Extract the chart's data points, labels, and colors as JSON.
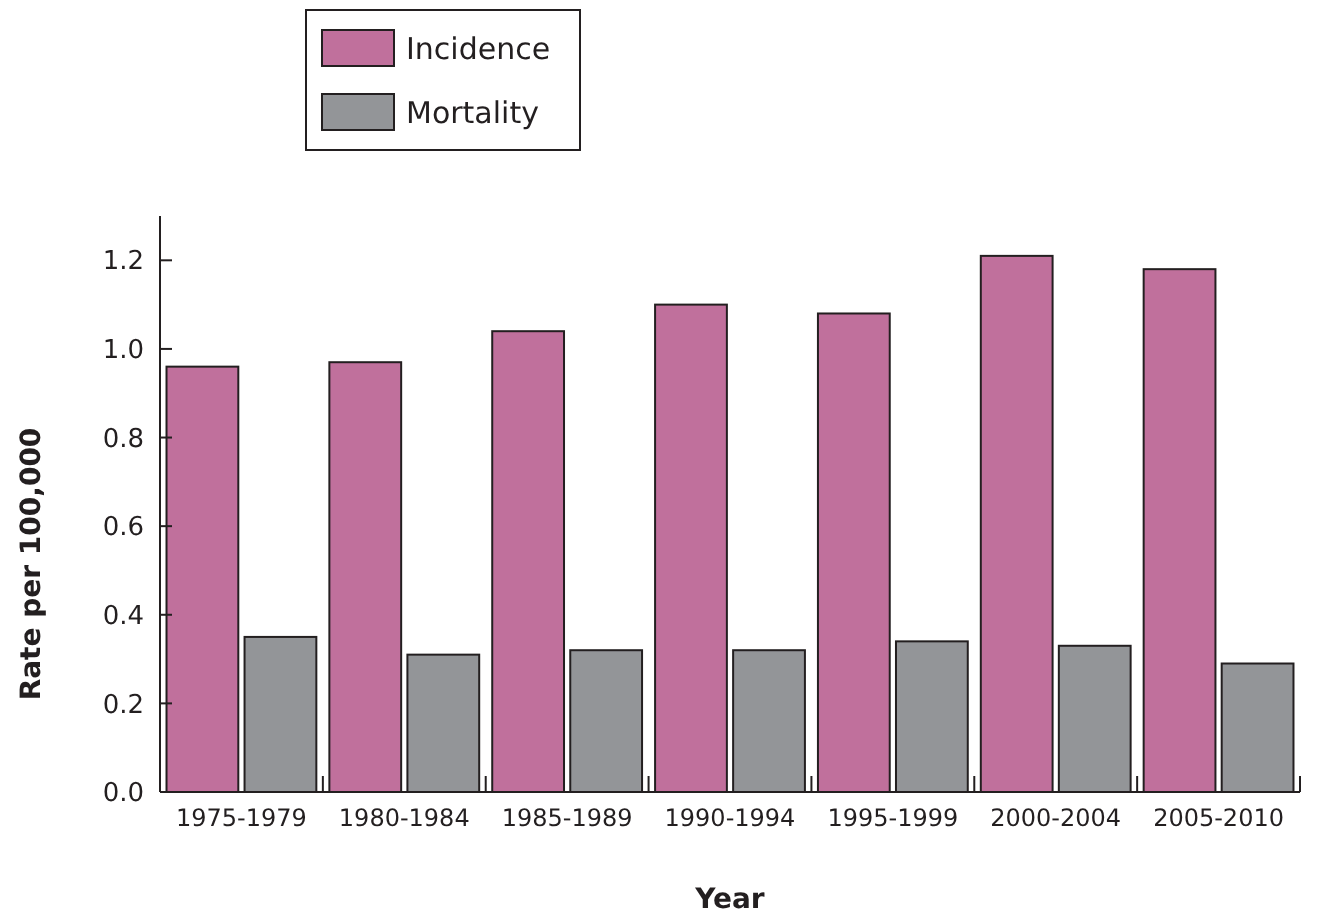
{
  "chart_data": {
    "type": "bar",
    "xlabel": "Year",
    "ylabel": "Rate per 100,000",
    "categories": [
      "1975-1979",
      "1980-1984",
      "1985-1989",
      "1990-1994",
      "1995-1999",
      "2000-2004",
      "2005-2010"
    ],
    "series": [
      {
        "name": "Incidence",
        "color": "#c0709c",
        "values": [
          0.96,
          0.97,
          1.04,
          1.1,
          1.08,
          1.21,
          1.18
        ]
      },
      {
        "name": "Mortality",
        "color": "#939598",
        "values": [
          0.35,
          0.31,
          0.32,
          0.32,
          0.34,
          0.33,
          0.29
        ]
      }
    ],
    "ylim": [
      0,
      1.3
    ],
    "yticks": [
      {
        "value": 0,
        "label": "0.0"
      },
      {
        "value": 0.2,
        "label": "0.2"
      },
      {
        "value": 0.4,
        "label": "0.4"
      },
      {
        "value": 0.6,
        "label": "0.6"
      },
      {
        "value": 0.8,
        "label": "0.8"
      },
      {
        "value": 1,
        "label": "1.0"
      },
      {
        "value": 1.2,
        "label": "1.2"
      }
    ],
    "grid": false,
    "legend": "top left"
  }
}
